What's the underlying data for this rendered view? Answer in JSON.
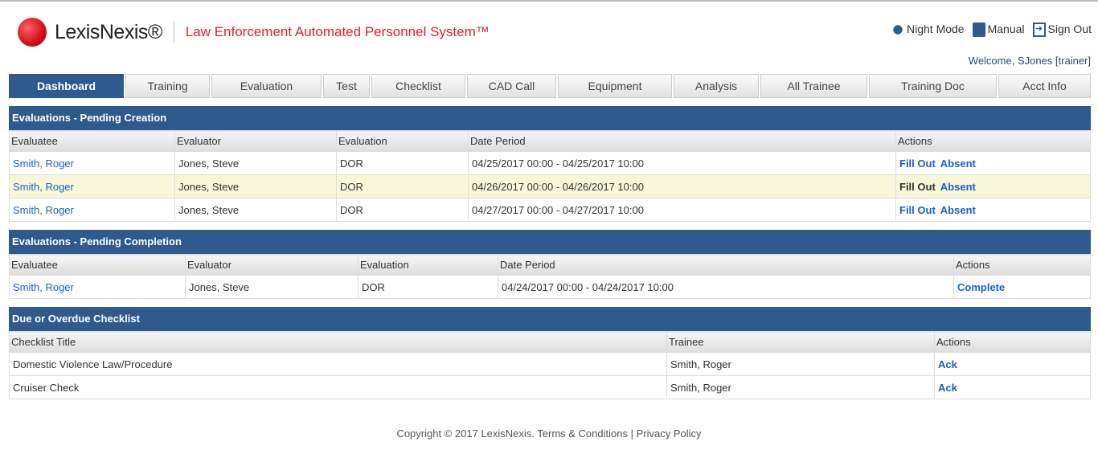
{
  "header": {
    "brand": "LexisNexis®",
    "system": "Law Enforcement Automated Personnel System™",
    "links": [
      {
        "label": "Night Mode",
        "icon": "night-mode-icon"
      },
      {
        "label": "Manual",
        "icon": "book-icon"
      },
      {
        "label": "Sign Out",
        "icon": "sign-out-icon"
      }
    ],
    "welcome": "Welcome, SJones [trainer]"
  },
  "tabs": [
    "Dashboard",
    "Training",
    "Evaluation",
    "Test",
    "Checklist",
    "CAD Call",
    "Equipment",
    "Analysis",
    "All Trainee",
    "Training Doc",
    "Acct Info"
  ],
  "pending_creation": {
    "title": "Evaluations - Pending Creation",
    "columns": [
      "Evaluatee",
      "Evaluator",
      "Evaluation",
      "Date Period",
      "Actions"
    ],
    "rows": [
      {
        "evaluatee": "Smith, Roger",
        "evaluator": "Jones, Steve",
        "evaluation": "DOR",
        "period": "04/25/2017 00:00 - 04/25/2017 10:00",
        "a1": "Fill Out",
        "a2": "Absent"
      },
      {
        "evaluatee": "Smith, Roger",
        "evaluator": "Jones, Steve",
        "evaluation": "DOR",
        "period": "04/26/2017 00:00 - 04/26/2017 10:00",
        "a1": "Fill Out",
        "a2": "Absent"
      },
      {
        "evaluatee": "Smith, Roger",
        "evaluator": "Jones, Steve",
        "evaluation": "DOR",
        "period": "04/27/2017 00:00 - 04/27/2017 10:00",
        "a1": "Fill Out",
        "a2": "Absent"
      }
    ]
  },
  "pending_completion": {
    "title": "Evaluations - Pending Completion",
    "columns": [
      "Evaluatee",
      "Evaluator",
      "Evaluation",
      "Date Period",
      "Actions"
    ],
    "rows": [
      {
        "evaluatee": "Smith, Roger",
        "evaluator": "Jones, Steve",
        "evaluation": "DOR",
        "period": "04/24/2017 00:00 - 04/24/2017 10:00",
        "a1": "Complete"
      }
    ]
  },
  "checklist": {
    "title": "Due or Overdue Checklist",
    "columns": [
      "Checklist Title",
      "Trainee",
      "Actions"
    ],
    "rows": [
      {
        "title": "Domestic Violence Law/Procedure",
        "trainee": "Smith, Roger",
        "a1": "Ack"
      },
      {
        "title": "Cruiser Check",
        "trainee": "Smith, Roger",
        "a1": "Ack"
      }
    ]
  },
  "footer": {
    "copyright": "Copyright ©  2017 LexisNexis.",
    "terms": "Terms & Conditions",
    "sep": "|",
    "privacy": "Privacy Policy"
  }
}
